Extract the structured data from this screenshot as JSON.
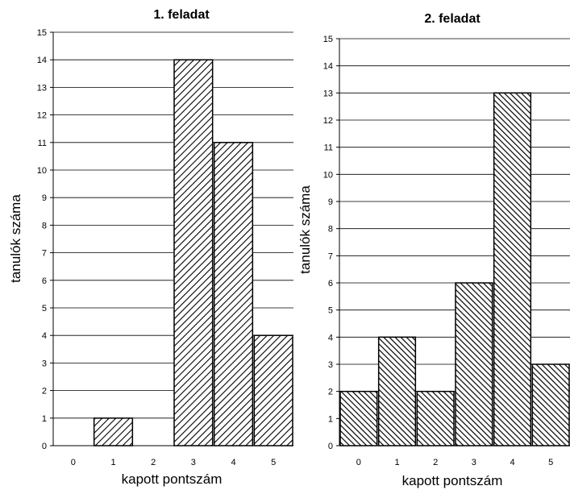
{
  "chart_data": [
    {
      "type": "bar",
      "title": "1. feladat",
      "xlabel": "kapott pontszám",
      "ylabel": "tanulók száma",
      "categories": [
        "0",
        "1",
        "2",
        "3",
        "4",
        "5"
      ],
      "values": [
        0,
        1,
        0,
        14,
        11,
        4
      ],
      "ylim": [
        0,
        15
      ],
      "yticks": [
        "0",
        "1",
        "2",
        "3",
        "4",
        "5",
        "6",
        "7",
        "8",
        "9",
        "10",
        "11",
        "12",
        "13",
        "14",
        "15"
      ],
      "grid": true,
      "pattern": "diagonal-hatch"
    },
    {
      "type": "bar",
      "title": "2. feladat",
      "xlabel": "kapott pontszám",
      "ylabel": "tanulók száma",
      "categories": [
        "0",
        "1",
        "2",
        "3",
        "4",
        "5"
      ],
      "values": [
        2,
        4,
        2,
        6,
        13,
        3
      ],
      "ylim": [
        0,
        15
      ],
      "yticks": [
        "0",
        "1",
        "2",
        "3",
        "4",
        "5",
        "6",
        "7",
        "8",
        "9",
        "10",
        "11",
        "12",
        "13",
        "14",
        "15"
      ],
      "grid": true,
      "pattern": "diagonal-hatch"
    }
  ]
}
